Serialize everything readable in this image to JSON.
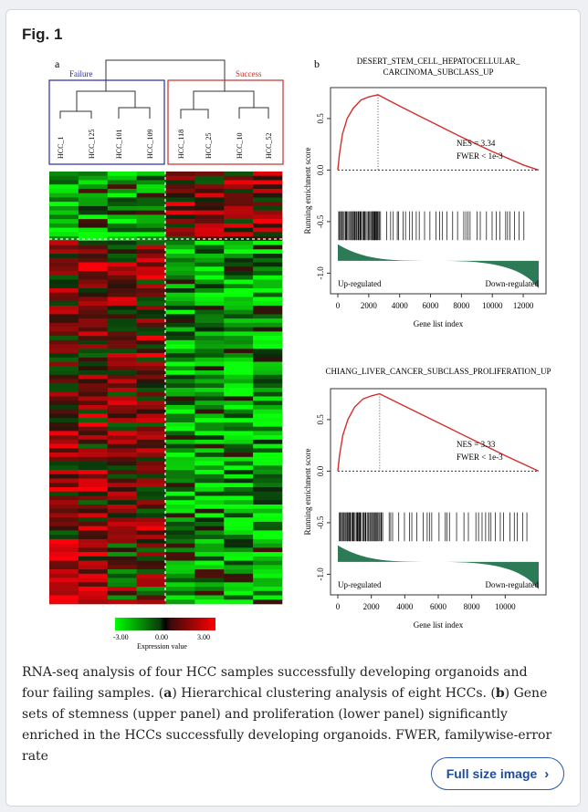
{
  "figure": {
    "title": "Fig. 1",
    "panel_a_label": "a",
    "panel_b_label": "b"
  },
  "dendrogram": {
    "group_failure": "Failure",
    "group_success": "Success",
    "samples": [
      "HCC_1",
      "HCC_125",
      "HCC_101",
      "HCC_109",
      "HCC_118",
      "HCC_25",
      "HCC_10",
      "HCC_52"
    ]
  },
  "heatmap_legend": {
    "min": "-3.00",
    "mid": "0.00",
    "max": "3.00",
    "label": "Expression value"
  },
  "chart_data": [
    {
      "type": "line",
      "title": "DESERT_STEM_CELL_HEPATOCELLULAR_",
      "title_line2": "CARCINOMA_SUBCLASS_UP",
      "xlabel": "Gene list index",
      "ylabel": "Running enrichment score",
      "xticks": [
        "0",
        "2000",
        "4000",
        "6000",
        "8000",
        "10000",
        "12000"
      ],
      "yticks": [
        "0.5",
        "0.0",
        "-0.5",
        "-1.0"
      ],
      "xlim": [
        0,
        13000
      ],
      "ylim": [
        -1.2,
        0.8
      ],
      "x": [
        0,
        100,
        300,
        600,
        1000,
        1500,
        2000,
        2600,
        4000,
        6000,
        8000,
        10000,
        12000,
        13000
      ],
      "y": [
        0,
        0.15,
        0.35,
        0.5,
        0.6,
        0.68,
        0.71,
        0.73,
        0.62,
        0.47,
        0.32,
        0.18,
        0.05,
        0
      ],
      "peak_x": 2600,
      "nes": "NES = 3.34",
      "fwer": "FWER < 1e-3",
      "left_label": "Up-regulated",
      "right_label": "Down-regulated"
    },
    {
      "type": "line",
      "title": "CHIANG_LIVER_CANCER_SUBCLASS_PROLIFERATION_UP",
      "xlabel": "Gene list index",
      "ylabel": "Running enrichment score",
      "xticks": [
        "0",
        "2000",
        "4000",
        "6000",
        "8000",
        "10000"
      ],
      "yticks": [
        "0.5",
        "0.0",
        "-0.5",
        "-1.0"
      ],
      "xlim": [
        0,
        12000
      ],
      "ylim": [
        -1.2,
        0.8
      ],
      "x": [
        0,
        100,
        300,
        600,
        1000,
        1500,
        2000,
        2500,
        4000,
        6000,
        8000,
        10000,
        12000
      ],
      "y": [
        0,
        0.15,
        0.35,
        0.5,
        0.62,
        0.7,
        0.73,
        0.75,
        0.63,
        0.47,
        0.31,
        0.15,
        0
      ],
      "peak_x": 2500,
      "nes": "NES = 3.33",
      "fwer": "FWER < 1e-3",
      "left_label": "Up-regulated",
      "right_label": "Down-regulated"
    }
  ],
  "caption": {
    "part1": "RNA-seq analysis of four HCC samples successfully developing organoids and four failing samples. (",
    "a": "a",
    "part2": ") Hierarchical clustering analysis of eight HCCs. (",
    "b": "b",
    "part3": ") Gene sets of stemness (upper panel) and proliferation (lower panel) significantly enriched in the HCCs successfully developing organoids. FWER, familywise-error rate"
  },
  "button": {
    "label": "Full size image"
  },
  "colors": {
    "failure": "#2a2aa8",
    "success": "#c8302c",
    "curve": "#d0302c",
    "ranked_fill": "#2d7a57"
  }
}
